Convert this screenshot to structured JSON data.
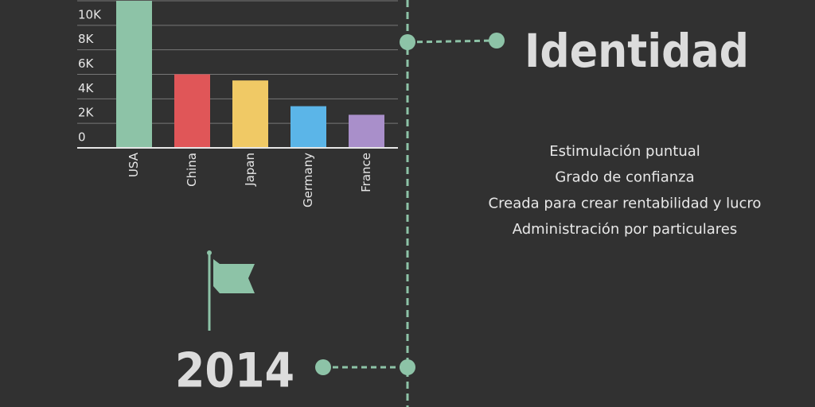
{
  "chart_data": {
    "type": "bar",
    "categories": [
      "USA",
      "China",
      "Japan",
      "Germany",
      "France"
    ],
    "values": [
      12000,
      6000,
      5500,
      3400,
      2700
    ],
    "colors": [
      "#8dc3a7",
      "#e05658",
      "#f0c965",
      "#5bb5e8",
      "#a98fca"
    ],
    "ylim": [
      0,
      12000
    ],
    "yticks": [
      0,
      {
        "value": 2000,
        "label": "2K"
      },
      {
        "value": 4000,
        "label": "4K"
      },
      {
        "value": 6000,
        "label": "6K"
      },
      {
        "value": 8000,
        "label": "8K"
      },
      {
        "value": 10000,
        "label": "10K"
      }
    ],
    "grid": true
  },
  "heading": "Identidad",
  "items": [
    "Estimulación puntual",
    "Grado de confianza",
    "Creada para crear rentabilidad y lucro",
    "Administración por particulares"
  ],
  "year": "2014"
}
